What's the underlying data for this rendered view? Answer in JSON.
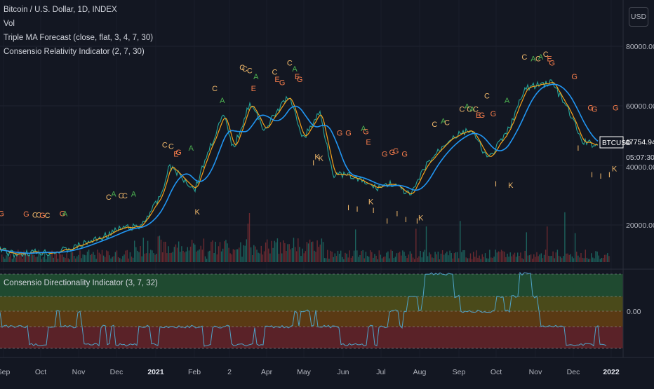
{
  "legends": {
    "main_title": "Bitcoin / U.S. Dollar, 1D, INDEX",
    "vol": "Vol",
    "ma": "Triple MA Forecast (close, flat, 3, 4, 7, 30)",
    "cri": "Consensio Relativity Indicator (2, 7, 30)",
    "cdi": "Consensio Directionality Indicator (3, 7, 32)"
  },
  "currency_button": "USD",
  "price_scale": [
    "80000.00",
    "60000.00",
    "20000.00"
  ],
  "price_partial_label": "40000.00",
  "osc_scale": "0.00",
  "last_price": {
    "symbol": "BTCUSD",
    "value": "47754.94",
    "countdown": "05:07:30"
  },
  "time_axis": [
    "Sep",
    "Oct",
    "Nov",
    "Dec",
    "2021",
    "Feb",
    "2",
    "Apr",
    "May",
    "Jun",
    "Jul",
    "Aug",
    "Sep",
    "Oct",
    "Nov",
    "Dec",
    "2022"
  ],
  "colors": {
    "background": "#131722",
    "green_line": "#26a69a",
    "orange_line": "#f7a21b",
    "blue_line": "#2196f3",
    "up_volume": "#26a69a",
    "down_volume": "#ef5350",
    "signal_C": "#f0b86b",
    "signal_A": "#4caf50",
    "signal_G": "#f57c4b",
    "signal_E": "#f57c4b",
    "signal_K": "#f0b86b",
    "signal_I": "#f0b86b",
    "band_green": "#1f4a30",
    "band_olive": "#4a4a1a",
    "band_orange": "#5a3a14",
    "band_red": "#5a2228"
  },
  "chart_data": {
    "type": "line",
    "price_series": [
      {
        "date": "2020-08-25",
        "price": 11700
      },
      {
        "date": "2020-09-05",
        "price": 10200
      },
      {
        "date": "2020-09-20",
        "price": 10900
      },
      {
        "date": "2020-10-05",
        "price": 10700
      },
      {
        "date": "2020-10-20",
        "price": 11900
      },
      {
        "date": "2020-11-01",
        "price": 13800
      },
      {
        "date": "2020-11-15",
        "price": 16000
      },
      {
        "date": "2020-12-01",
        "price": 19000
      },
      {
        "date": "2020-12-15",
        "price": 19400
      },
      {
        "date": "2020-12-31",
        "price": 29000
      },
      {
        "date": "2021-01-08",
        "price": 40000
      },
      {
        "date": "2021-01-15",
        "price": 37000
      },
      {
        "date": "2021-01-28",
        "price": 32000
      },
      {
        "date": "2021-02-08",
        "price": 45000
      },
      {
        "date": "2021-02-20",
        "price": 57000
      },
      {
        "date": "2021-02-28",
        "price": 45500
      },
      {
        "date": "2021-03-13",
        "price": 61000
      },
      {
        "date": "2021-03-25",
        "price": 52000
      },
      {
        "date": "2021-04-13",
        "price": 63500
      },
      {
        "date": "2021-04-25",
        "price": 49000
      },
      {
        "date": "2021-05-08",
        "price": 58000
      },
      {
        "date": "2021-05-19",
        "price": 37000
      },
      {
        "date": "2021-06-01",
        "price": 36500
      },
      {
        "date": "2021-06-22",
        "price": 32500
      },
      {
        "date": "2021-07-05",
        "price": 34000
      },
      {
        "date": "2021-07-20",
        "price": 29800
      },
      {
        "date": "2021-08-01",
        "price": 40000
      },
      {
        "date": "2021-08-20",
        "price": 49000
      },
      {
        "date": "2021-09-06",
        "price": 52000
      },
      {
        "date": "2021-09-20",
        "price": 42000
      },
      {
        "date": "2021-10-05",
        "price": 51000
      },
      {
        "date": "2021-10-20",
        "price": 66000
      },
      {
        "date": "2021-11-10",
        "price": 68000
      },
      {
        "date": "2021-11-25",
        "price": 57000
      },
      {
        "date": "2021-12-04",
        "price": 48000
      },
      {
        "date": "2021-12-20",
        "price": 46500
      },
      {
        "date": "2021-12-31",
        "price": 47754
      }
    ],
    "y_range": [
      10000,
      88000
    ],
    "x_range": [
      "2020-08-25",
      "2022-01-06"
    ],
    "ylabel": "",
    "grid": true,
    "oscillator_levels": [
      "top",
      "upper",
      "zero",
      "lower",
      "bottom"
    ]
  },
  "signals": [
    {
      "t": "G",
      "d": "2020-08-26",
      "p": 23000
    },
    {
      "t": "G",
      "d": "2020-09-15",
      "p": 22800
    },
    {
      "t": "C",
      "d": "2020-09-22",
      "p": 22500
    },
    {
      "t": "C",
      "d": "2020-09-25",
      "p": 22500
    },
    {
      "t": "G",
      "d": "2020-09-28",
      "p": 22400
    },
    {
      "t": "C",
      "d": "2020-10-02",
      "p": 22400
    },
    {
      "t": "G",
      "d": "2020-10-14",
      "p": 23000
    },
    {
      "t": "A",
      "d": "2020-10-16",
      "p": 23000
    },
    {
      "t": "C",
      "d": "2020-11-20",
      "p": 28500
    },
    {
      "t": "A",
      "d": "2020-11-24",
      "p": 29500
    },
    {
      "t": "C",
      "d": "2020-11-30",
      "p": 29000
    },
    {
      "t": "C",
      "d": "2020-12-03",
      "p": 29000
    },
    {
      "t": "A",
      "d": "2020-12-10",
      "p": 29500
    },
    {
      "t": "C",
      "d": "2021-01-04",
      "p": 46000
    },
    {
      "t": "C",
      "d": "2021-01-09",
      "p": 45500
    },
    {
      "t": "E",
      "d": "2021-01-13",
      "p": 43000
    },
    {
      "t": "G",
      "d": "2021-01-15",
      "p": 43500
    },
    {
      "t": "A",
      "d": "2021-01-25",
      "p": 45000
    },
    {
      "t": "K",
      "d": "2021-01-30",
      "p": 23500
    },
    {
      "t": "C",
      "d": "2021-02-13",
      "p": 65000
    },
    {
      "t": "A",
      "d": "2021-02-19",
      "p": 61000
    },
    {
      "t": "C",
      "d": "2021-03-07",
      "p": 72000
    },
    {
      "t": "C",
      "d": "2021-03-09",
      "p": 71500
    },
    {
      "t": "C",
      "d": "2021-03-13",
      "p": 71000
    },
    {
      "t": "E",
      "d": "2021-03-16",
      "p": 65000
    },
    {
      "t": "A",
      "d": "2021-03-18",
      "p": 69000
    },
    {
      "t": "C",
      "d": "2021-04-02",
      "p": 70500
    },
    {
      "t": "E",
      "d": "2021-04-04",
      "p": 68000
    },
    {
      "t": "G",
      "d": "2021-04-08",
      "p": 67000
    },
    {
      "t": "C",
      "d": "2021-04-14",
      "p": 73500
    },
    {
      "t": "A",
      "d": "2021-04-18",
      "p": 71500
    },
    {
      "t": "E",
      "d": "2021-04-20",
      "p": 69000
    },
    {
      "t": "G",
      "d": "2021-04-22",
      "p": 68000
    },
    {
      "t": "K",
      "d": "2021-05-06",
      "p": 42000
    },
    {
      "t": "K",
      "d": "2021-05-09",
      "p": 41500
    },
    {
      "t": "I",
      "d": "2021-05-03",
      "p": 40000
    },
    {
      "t": "G",
      "d": "2021-05-24",
      "p": 50000
    },
    {
      "t": "G",
      "d": "2021-05-31",
      "p": 50000
    },
    {
      "t": "I",
      "d": "2021-05-31",
      "p": 25000
    },
    {
      "t": "I",
      "d": "2021-06-07",
      "p": 24500
    },
    {
      "t": "A",
      "d": "2021-06-12",
      "p": 51500
    },
    {
      "t": "G",
      "d": "2021-06-14",
      "p": 50500
    },
    {
      "t": "E",
      "d": "2021-06-16",
      "p": 47000
    },
    {
      "t": "K",
      "d": "2021-06-18",
      "p": 27000
    },
    {
      "t": "I",
      "d": "2021-06-20",
      "p": 24000
    },
    {
      "t": "G",
      "d": "2021-06-29",
      "p": 43000
    },
    {
      "t": "I",
      "d": "2021-07-01",
      "p": 20500
    },
    {
      "t": "G",
      "d": "2021-07-05",
      "p": 43500
    },
    {
      "t": "G",
      "d": "2021-07-08",
      "p": 44000
    },
    {
      "t": "I",
      "d": "2021-07-09",
      "p": 23000
    },
    {
      "t": "G",
      "d": "2021-07-15",
      "p": 43000
    },
    {
      "t": "I",
      "d": "2021-07-16",
      "p": 21000
    },
    {
      "t": "I",
      "d": "2021-07-25",
      "p": 20500
    },
    {
      "t": "K",
      "d": "2021-07-28",
      "p": 21500
    },
    {
      "t": "C",
      "d": "2021-08-08",
      "p": 53000
    },
    {
      "t": "A",
      "d": "2021-08-15",
      "p": 54000
    },
    {
      "t": "C",
      "d": "2021-08-18",
      "p": 53500
    },
    {
      "t": "C",
      "d": "2021-08-30",
      "p": 58000
    },
    {
      "t": "A",
      "d": "2021-09-03",
      "p": 59000
    },
    {
      "t": "C",
      "d": "2021-09-05",
      "p": 58000
    },
    {
      "t": "A",
      "d": "2021-09-07",
      "p": 58000
    },
    {
      "t": "C",
      "d": "2021-09-10",
      "p": 58000
    },
    {
      "t": "E",
      "d": "2021-09-12",
      "p": 56000
    },
    {
      "t": "G",
      "d": "2021-09-15",
      "p": 56000
    },
    {
      "t": "C",
      "d": "2021-09-19",
      "p": 62500
    },
    {
      "t": "G",
      "d": "2021-09-24",
      "p": 56500
    },
    {
      "t": "I",
      "d": "2021-09-26",
      "p": 33000
    },
    {
      "t": "A",
      "d": "2021-10-05",
      "p": 61000
    },
    {
      "t": "K",
      "d": "2021-10-08",
      "p": 32500
    },
    {
      "t": "C",
      "d": "2021-10-19",
      "p": 75500
    },
    {
      "t": "A",
      "d": "2021-10-26",
      "p": 75000
    },
    {
      "t": "C",
      "d": "2021-10-30",
      "p": 75000
    },
    {
      "t": "A",
      "d": "2021-11-01",
      "p": 75500
    },
    {
      "t": "C",
      "d": "2021-11-05",
      "p": 76500
    },
    {
      "t": "E",
      "d": "2021-11-08",
      "p": 75000
    },
    {
      "t": "G",
      "d": "2021-11-10",
      "p": 73500
    },
    {
      "t": "G",
      "d": "2021-11-28",
      "p": 69000
    },
    {
      "t": "I",
      "d": "2021-12-01",
      "p": 45000
    },
    {
      "t": "G",
      "d": "2021-12-11",
      "p": 58500
    },
    {
      "t": "G",
      "d": "2021-12-14",
      "p": 58000
    },
    {
      "t": "I",
      "d": "2021-12-12",
      "p": 36000
    },
    {
      "t": "I",
      "d": "2021-12-19",
      "p": 35500
    },
    {
      "t": "I",
      "d": "2021-12-26",
      "p": 36000
    },
    {
      "t": "K",
      "d": "2021-12-30",
      "p": 38000
    },
    {
      "t": "G",
      "d": "2021-12-31",
      "p": 58500
    }
  ]
}
